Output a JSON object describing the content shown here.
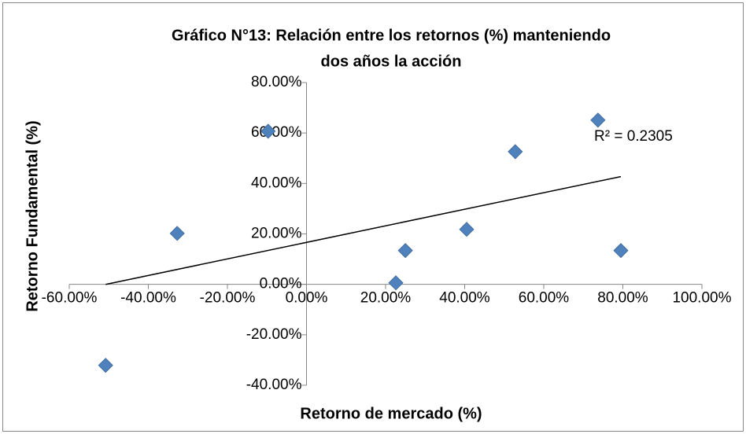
{
  "chart_data": {
    "type": "scatter",
    "title": [
      "Gráfico N°13: Relación entre los retornos (%) manteniendo",
      "dos años la acción"
    ],
    "x_label": "Retorno de mercado (%)",
    "y_label": "Retorno Fundamental (%)",
    "annotation": "R² = 0.2305",
    "x": [
      -50.8,
      -32.7,
      -9.7,
      22.6,
      25.0,
      40.5,
      52.8,
      73.7,
      79.5
    ],
    "values": [
      -32.1,
      20.2,
      60.7,
      0.6,
      13.4,
      21.8,
      52.6,
      65.1,
      13.4
    ],
    "color": "#4f81bd",
    "trendline": "linear",
    "xlim": [
      -60,
      100
    ],
    "xticks": [
      {
        "value": -60,
        "label": "-60.00%"
      },
      {
        "value": -40,
        "label": "-40.00%"
      },
      {
        "value": -20,
        "label": "-20.00%"
      },
      {
        "value": 0,
        "label": "0.00%"
      },
      {
        "value": 20,
        "label": "20.00%"
      },
      {
        "value": 40,
        "label": "40.00%"
      },
      {
        "value": 60,
        "label": "60.00%"
      },
      {
        "value": 80,
        "label": "80.00%"
      },
      {
        "value": 100,
        "label": "100.00%"
      }
    ],
    "ylim": [
      -40,
      80
    ],
    "yticks": [
      {
        "value": -40,
        "label": "-40.00%"
      },
      {
        "value": -20,
        "label": "-20.00%"
      },
      {
        "value": 0,
        "label": "0.00%"
      },
      {
        "value": 20,
        "label": "20.00%"
      },
      {
        "value": 40,
        "label": "40.00%"
      },
      {
        "value": 60,
        "label": "60.00%"
      },
      {
        "value": 80,
        "label": "80.00%"
      }
    ]
  }
}
